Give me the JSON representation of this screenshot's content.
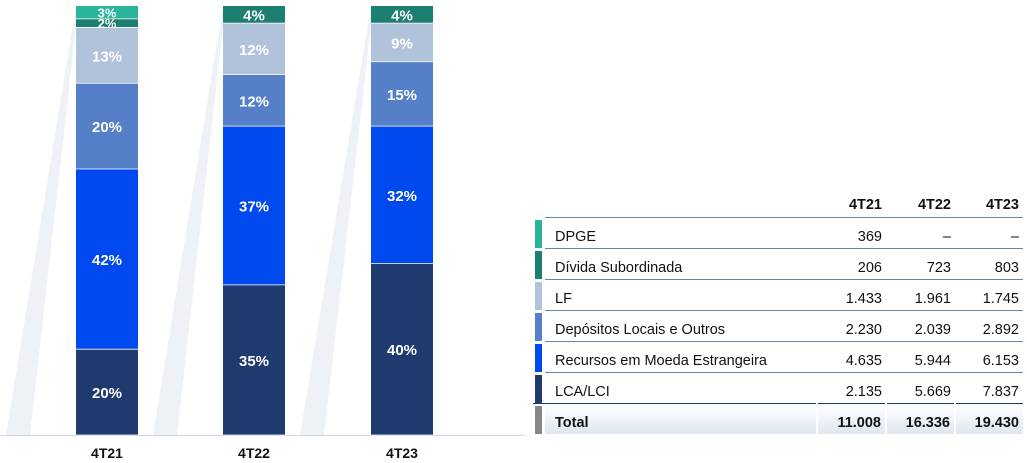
{
  "chart_data": {
    "type": "bar",
    "stacked": true,
    "categories": [
      "4T21",
      "4T22",
      "4T23"
    ],
    "series": [
      {
        "name": "LCA/LCI",
        "values": [
          20,
          35,
          40
        ],
        "labels": [
          "20%",
          "35%",
          "40%"
        ],
        "color": "#1e3a6e"
      },
      {
        "name": "Recursos em Moeda Estrangeira",
        "values": [
          42,
          37,
          32
        ],
        "labels": [
          "42%",
          "37%",
          "32%"
        ],
        "color": "#0049ef"
      },
      {
        "name": "Depósitos Locais e Outros",
        "values": [
          20,
          12,
          15
        ],
        "labels": [
          "20%",
          "12%",
          "15%"
        ],
        "color": "#5580c8"
      },
      {
        "name": "LF",
        "values": [
          13,
          12,
          9
        ],
        "labels": [
          "13%",
          "12%",
          "9%"
        ],
        "color": "#b1c3da"
      },
      {
        "name": "Dívida Subordinada",
        "values": [
          2,
          4,
          4
        ],
        "labels": [
          "2%",
          "4%",
          "4%"
        ],
        "color": "#1d7f6f"
      },
      {
        "name": "DPGE",
        "values": [
          3,
          0,
          0
        ],
        "labels": [
          "3%",
          "",
          ""
        ],
        "color": "#2ab59a"
      }
    ],
    "ylim": [
      0,
      100
    ]
  },
  "table": {
    "headers": [
      "4T21",
      "4T22",
      "4T23"
    ],
    "rows": [
      {
        "label": "DPGE",
        "color": "#2ab59a",
        "values": [
          "369",
          "–",
          "–"
        ]
      },
      {
        "label": "Dívida Subordinada",
        "color": "#1d7f6f",
        "values": [
          "206",
          "723",
          "803"
        ]
      },
      {
        "label": "LF",
        "color": "#b1c3da",
        "values": [
          "1.433",
          "1.961",
          "1.745"
        ]
      },
      {
        "label": "Depósitos Locais e Outros",
        "color": "#5580c8",
        "values": [
          "2.230",
          "2.039",
          "2.892"
        ]
      },
      {
        "label": "Recursos em Moeda Estrangeira",
        "color": "#0049ef",
        "values": [
          "4.635",
          "5.944",
          "6.153"
        ]
      },
      {
        "label": "LCA/LCI",
        "color": "#1e3a6e",
        "values": [
          "2.135",
          "5.669",
          "7.837"
        ]
      }
    ],
    "total": {
      "label": "Total",
      "color": "#888888",
      "values": [
        "11.008",
        "16.336",
        "19.430"
      ]
    }
  }
}
